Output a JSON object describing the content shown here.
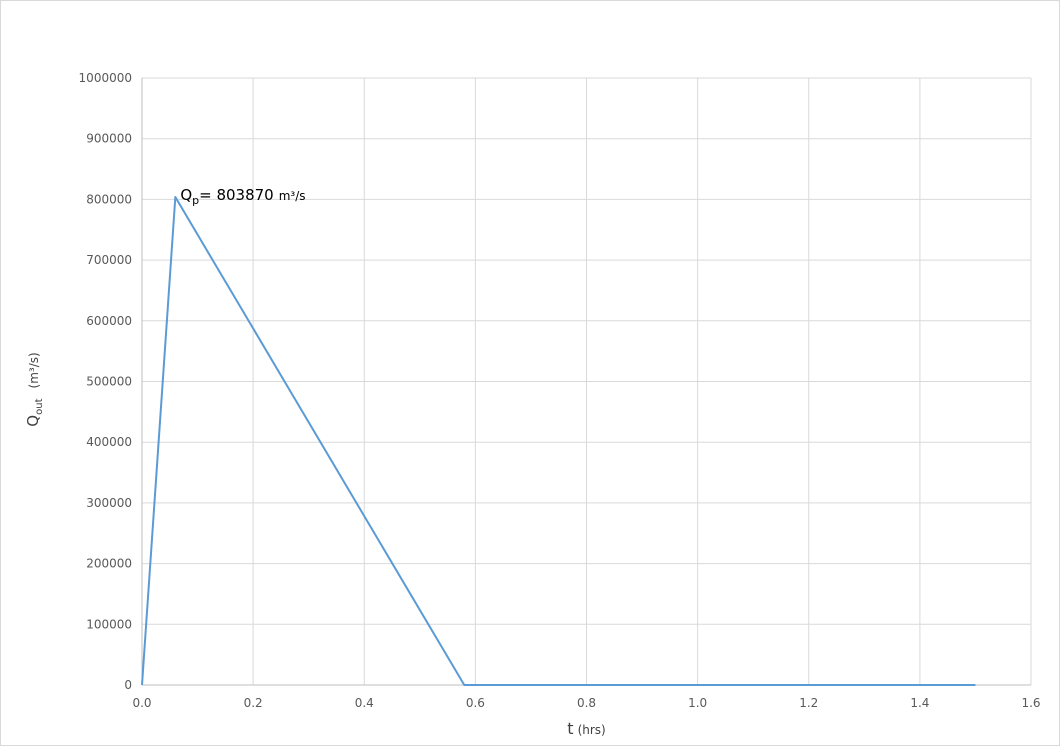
{
  "chart_data": {
    "type": "line",
    "title": "",
    "xlabel": {
      "main": "t",
      "unit": "(hrs)"
    },
    "ylabel": {
      "main": "Q",
      "sub": "out",
      "unit": "(m³/s)"
    },
    "xlim": [
      0,
      1.6
    ],
    "ylim": [
      0,
      1000000
    ],
    "x_ticks": [
      0.0,
      0.2,
      0.4,
      0.6,
      0.8,
      1.0,
      1.2,
      1.4,
      1.6
    ],
    "x_tick_labels": [
      "0.0",
      "0.2",
      "0.4",
      "0.6",
      "0.8",
      "1.0",
      "1.2",
      "1.4",
      "1.6"
    ],
    "y_ticks": [
      0,
      100000,
      200000,
      300000,
      400000,
      500000,
      600000,
      700000,
      800000,
      900000,
      1000000
    ],
    "y_tick_labels": [
      "0",
      "100000",
      "200000",
      "300000",
      "400000",
      "500000",
      "600000",
      "700000",
      "800000",
      "900000",
      "1000000"
    ],
    "grid": true,
    "legend": "none",
    "colors": {
      "series": "#5b9bd5",
      "grid": "#d9d9d9"
    },
    "series": [
      {
        "x": [
          0.0,
          0.06,
          0.58,
          1.5
        ],
        "y": [
          0,
          803870,
          0,
          0
        ]
      }
    ],
    "annotation": {
      "label": "Q",
      "sub": "p",
      "text": "= 803870",
      "unit": "m³/s",
      "x": 0.06,
      "y": 803870
    }
  }
}
